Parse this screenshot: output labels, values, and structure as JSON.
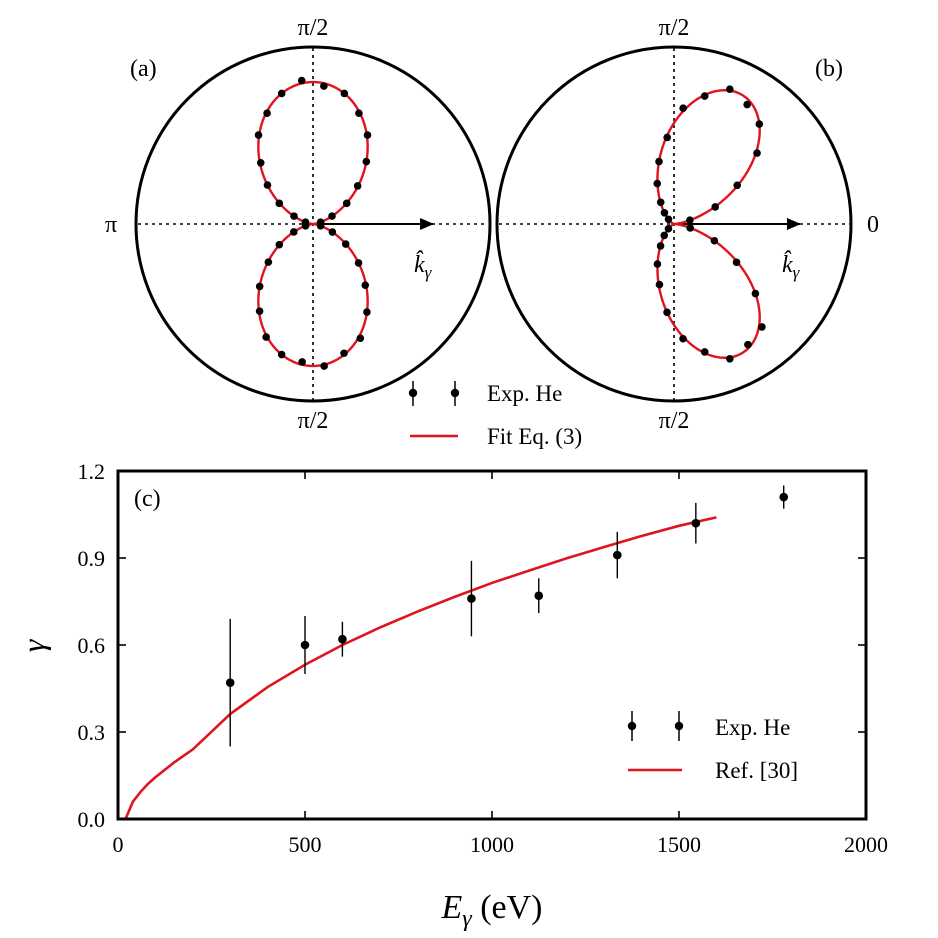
{
  "colors": {
    "fit": "#e0141e",
    "data": "#000000",
    "frame": "#000000"
  },
  "polar_panels": [
    {
      "panel_label": "(a)",
      "top_label": "π/2",
      "bottom_label": "π/2",
      "left_label": "π",
      "right_label": "",
      "vector_label": "k̂",
      "vector_sub": "γ"
    },
    {
      "panel_label": "(b)",
      "top_label": "π/2",
      "bottom_label": "π/2",
      "left_label": "",
      "right_label": "0",
      "vector_label": "k̂",
      "vector_sub": "γ"
    }
  ],
  "polar_legend": {
    "data_label": "Exp. He",
    "fit_label": "Fit Eq. (3)"
  },
  "chart_data": [
    {
      "type": "scatter",
      "panel": "(a)",
      "polar": true,
      "gamma": 0.0,
      "r_max": 1.0,
      "series": [
        {
          "name": "Exp. He",
          "kind": "points",
          "angle_step_deg": 9,
          "r_relative": [
            0.98,
            1.01,
            0.99,
            1.02,
            0.98,
            1.0,
            1.01,
            0.99,
            1.0,
            0.98,
            1.02,
            1.0,
            0.99,
            1.01,
            0.98,
            1.0,
            1.02,
            0.99,
            1.0,
            0.98,
            1.01,
            0.99,
            1.0,
            1.02,
            0.98,
            1.0,
            0.99,
            1.01,
            1.0,
            0.98,
            1.01,
            0.99,
            1.02,
            1.0,
            0.98,
            1.0,
            0.99,
            1.01,
            1.0,
            0.98
          ]
        },
        {
          "name": "Fit Eq. (3)",
          "kind": "line"
        }
      ]
    },
    {
      "type": "scatter",
      "panel": "(b)",
      "polar": true,
      "gamma": 0.77,
      "r_max": 1.0,
      "series": [
        {
          "name": "Exp. He",
          "kind": "points",
          "angle_step_deg": 9,
          "r_relative": [
            1.0,
            0.97,
            1.03,
            0.98,
            1.02,
            1.0,
            0.97,
            1.01,
            0.99,
            1.03,
            0.98,
            1.0,
            1.02,
            0.97,
            1.01,
            0.99,
            1.0,
            1.03,
            0.98,
            1.01,
            1.0,
            0.97,
            1.02,
            0.99,
            1.0,
            1.03,
            0.98,
            1.01,
            0.97,
            1.0,
            1.02,
            0.99,
            1.01,
            0.98,
            1.03,
            1.0,
            0.97,
            1.01,
            0.99,
            1.0
          ]
        },
        {
          "name": "Fit Eq. (3)",
          "kind": "line"
        }
      ]
    },
    {
      "type": "scatter",
      "panel": "(c)",
      "panel_label": "(c)",
      "xlabel": "E",
      "xlabel_sub": "γ",
      "xlabel_unit": " (eV)",
      "ylabel": "γ",
      "xlim": [
        0,
        2000
      ],
      "ylim": [
        0.0,
        1.2
      ],
      "xticks": [
        0,
        500,
        1000,
        1500,
        2000
      ],
      "yticks": [
        0.0,
        0.3,
        0.6,
        0.9,
        1.2
      ],
      "ytick_labels": [
        "0.0",
        "0.3",
        "0.6",
        "0.9",
        "1.2"
      ],
      "grid": false,
      "legend_position": "bottom-right",
      "series": [
        {
          "name": "Exp. He",
          "kind": "errorbar",
          "points": [
            {
              "x": 300,
              "y": 0.47,
              "err": 0.22
            },
            {
              "x": 500,
              "y": 0.6,
              "err": 0.1
            },
            {
              "x": 600,
              "y": 0.62,
              "err": 0.06
            },
            {
              "x": 945,
              "y": 0.76,
              "err": 0.13
            },
            {
              "x": 1125,
              "y": 0.77,
              "err": 0.06
            },
            {
              "x": 1335,
              "y": 0.91,
              "err": 0.08
            },
            {
              "x": 1545,
              "y": 1.02,
              "err": 0.07
            },
            {
              "x": 1780,
              "y": 1.11,
              "err": 0.04
            }
          ]
        },
        {
          "name": "Ref. [30]",
          "kind": "line",
          "x": [
            20,
            40,
            60,
            80,
            100,
            150,
            200,
            300,
            400,
            500,
            600,
            700,
            800,
            900,
            1000,
            1100,
            1200,
            1300,
            1400,
            1500,
            1600
          ],
          "y": [
            0.0,
            0.06,
            0.093,
            0.121,
            0.144,
            0.195,
            0.24,
            0.362,
            0.455,
            0.532,
            0.6,
            0.66,
            0.715,
            0.766,
            0.814,
            0.857,
            0.899,
            0.938,
            0.976,
            1.011,
            1.04
          ]
        }
      ]
    }
  ]
}
